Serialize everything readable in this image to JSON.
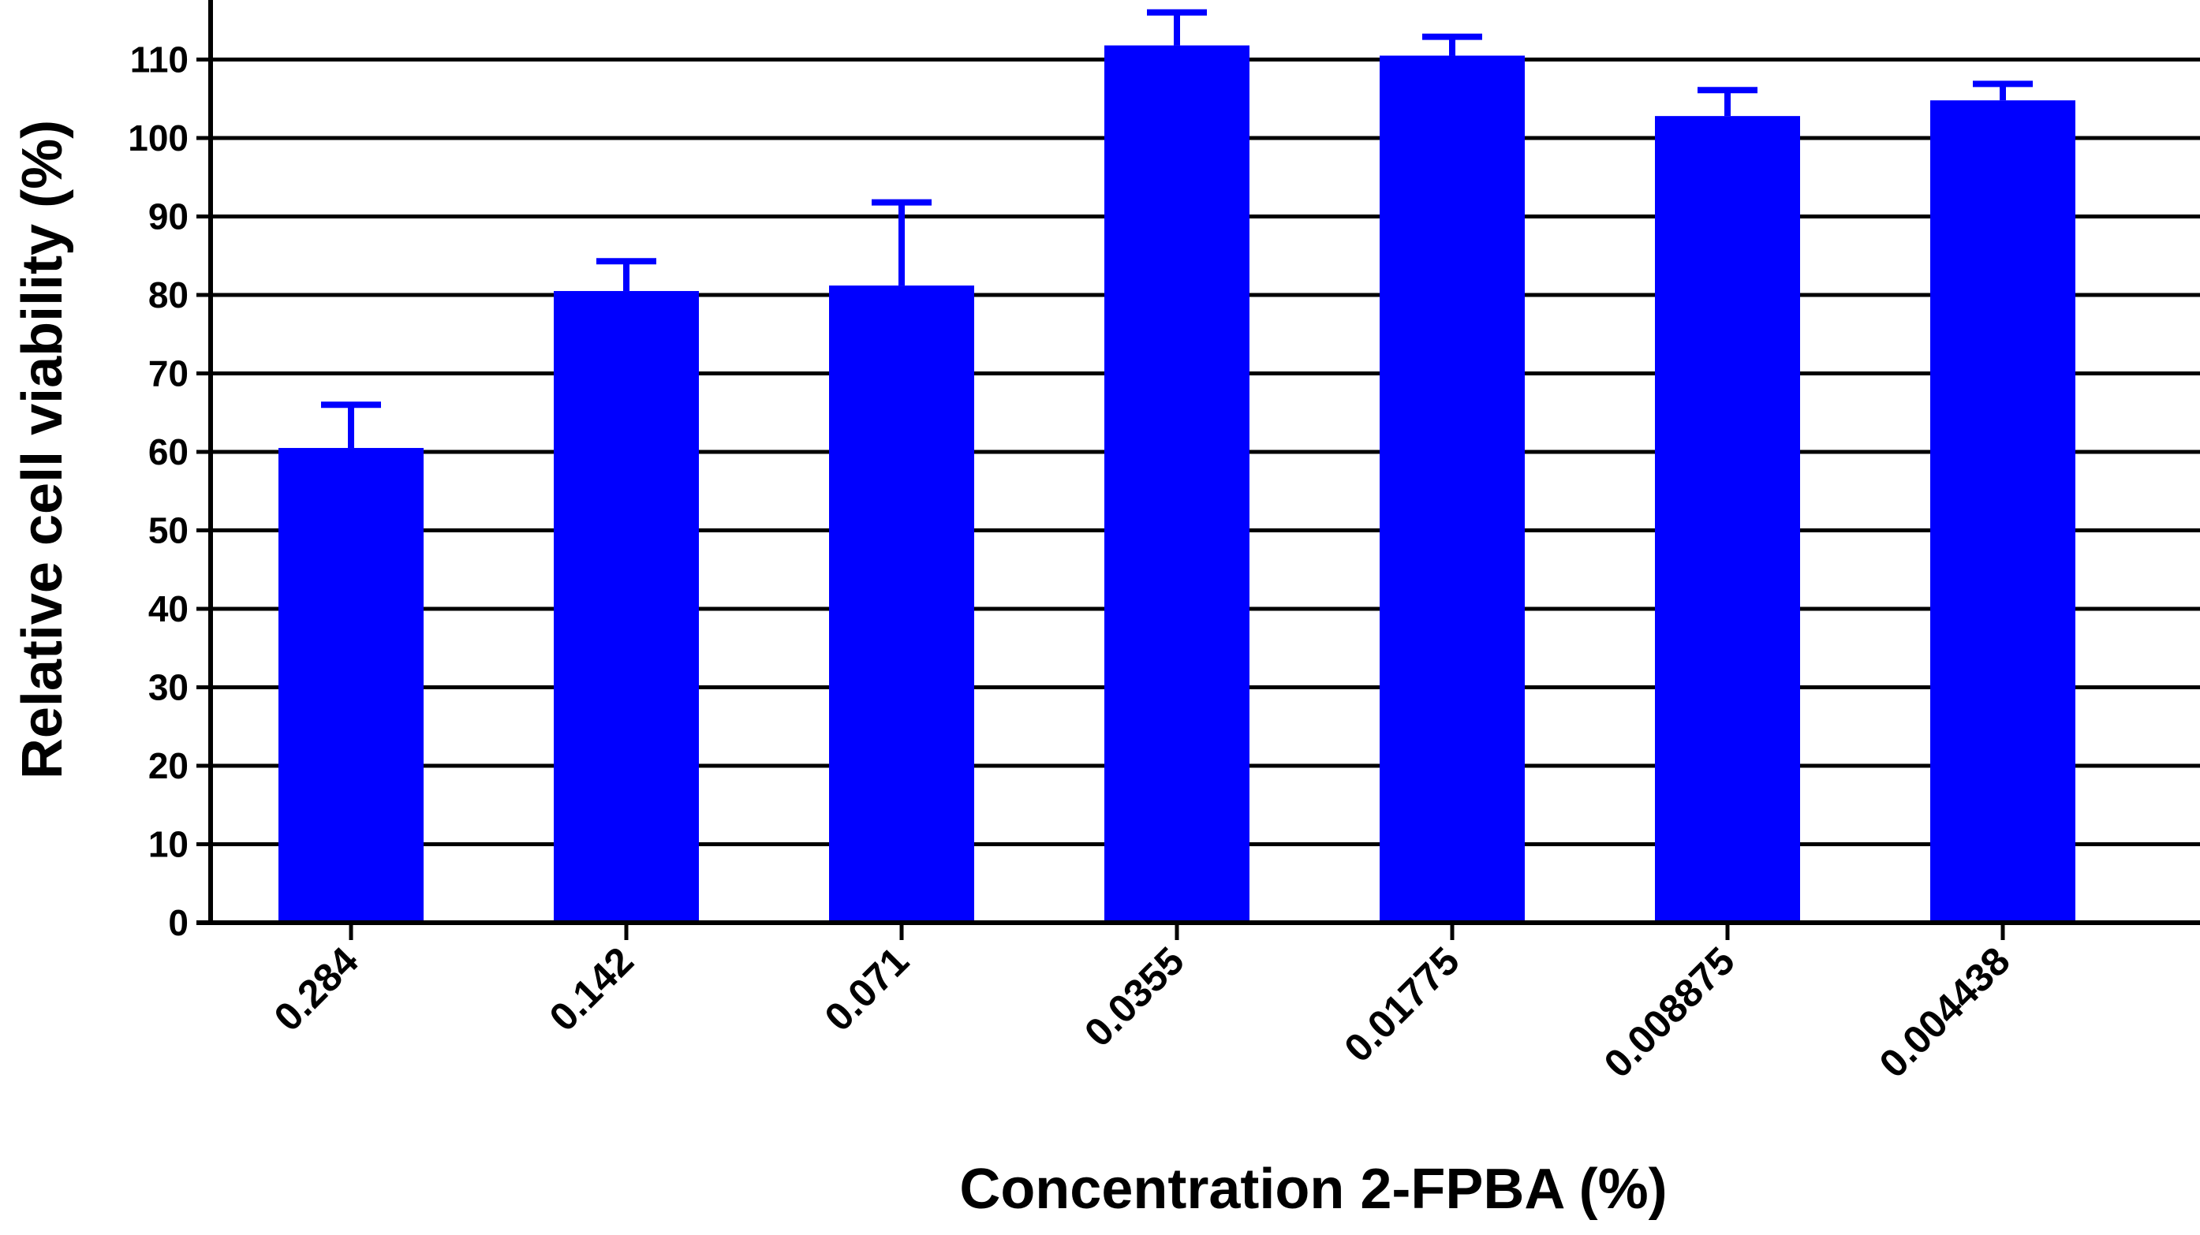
{
  "chart_data": {
    "type": "bar",
    "title": "",
    "xlabel": "Concentration 2-FPBA (%)",
    "ylabel": "Relative cell viability (%)",
    "categories": [
      "0.284",
      "0.142",
      "0.071",
      "0.0355",
      "0.01775",
      "0.008875",
      "0.004438"
    ],
    "series": [
      {
        "values": [
          60.5,
          80.5,
          81.2,
          111.8,
          110.5,
          102.8,
          104.8
        ],
        "error": [
          5.5,
          3.8,
          10.6,
          4.2,
          2.4,
          3.3,
          2.1
        ],
        "color": "#0000ff"
      }
    ],
    "ylim": [
      0,
      115
    ],
    "yticks": [
      0,
      10,
      20,
      30,
      40,
      50,
      60,
      70,
      80,
      90,
      100,
      110
    ],
    "grid": true,
    "legend": "none"
  }
}
